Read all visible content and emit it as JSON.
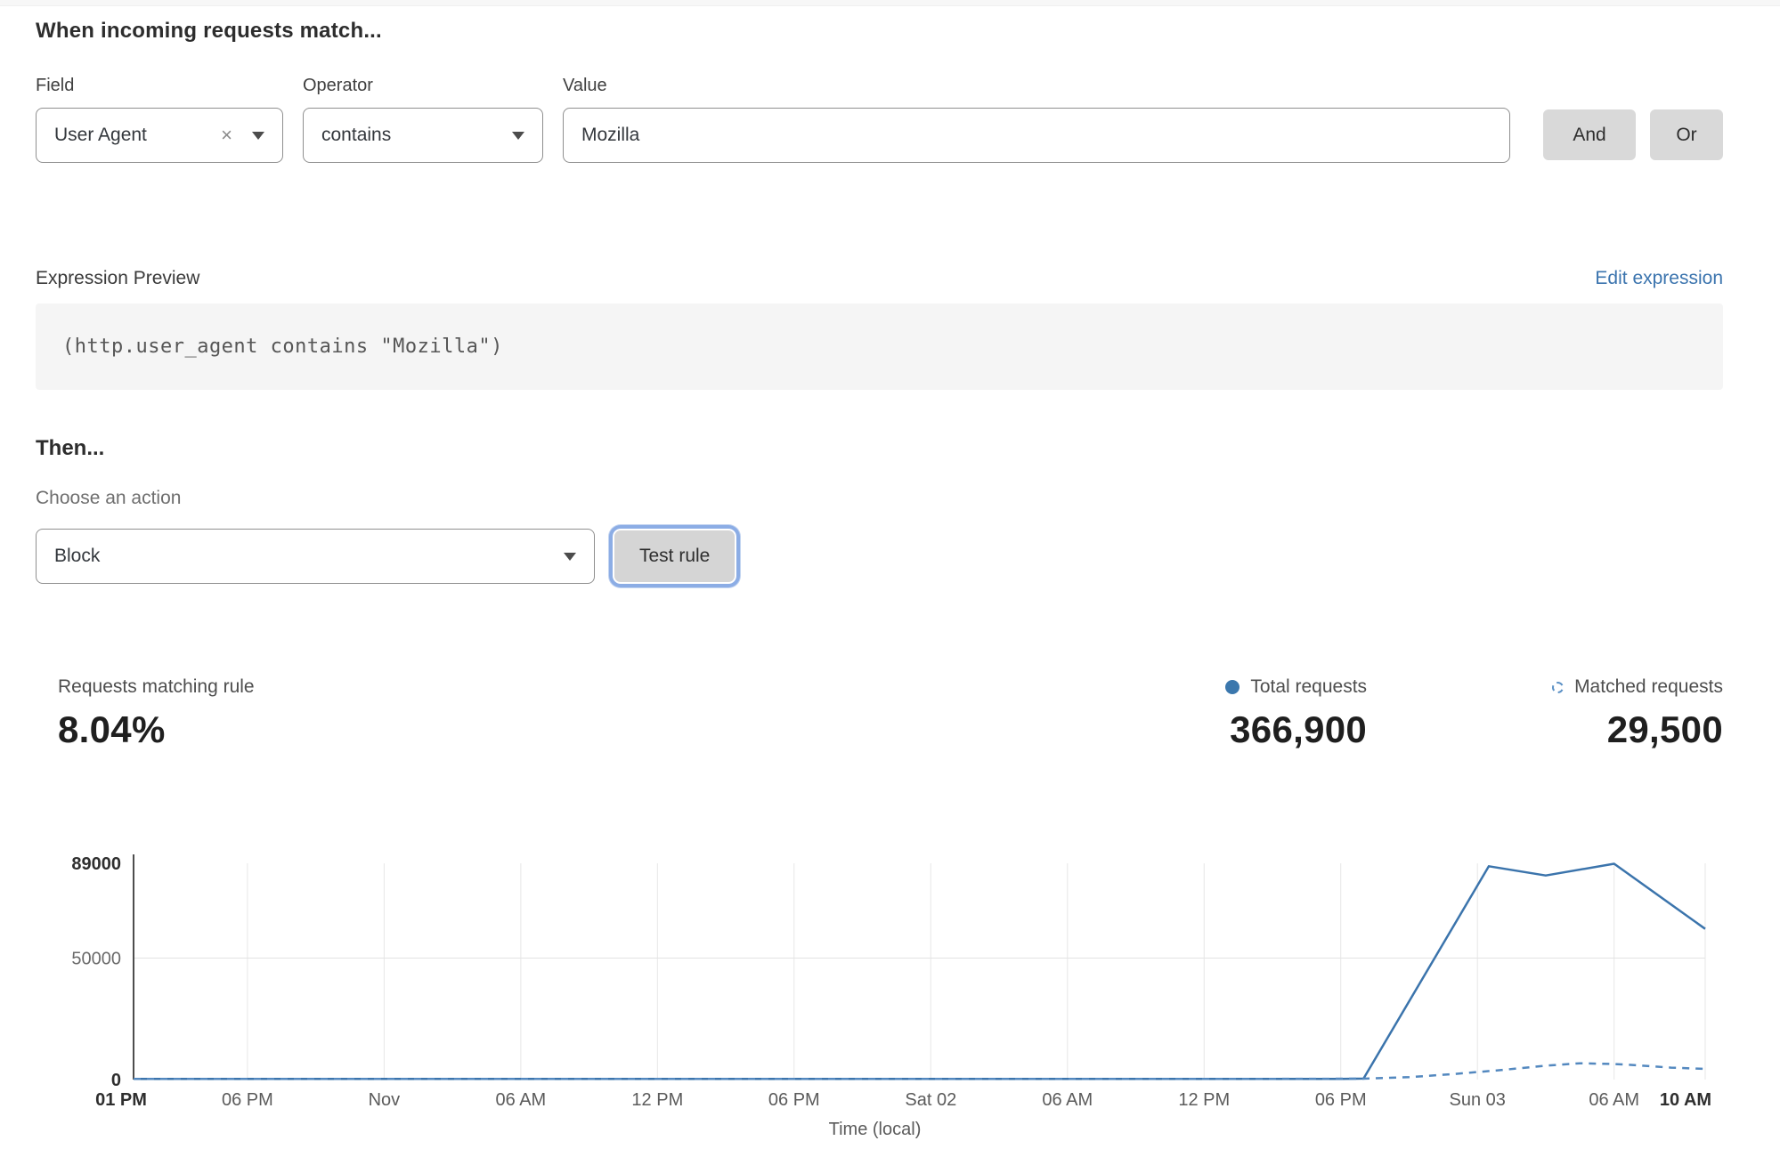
{
  "header": {
    "title": "When incoming requests match..."
  },
  "rule_builder": {
    "field": {
      "label": "Field",
      "value": "User Agent",
      "clear_glyph": "×"
    },
    "operator": {
      "label": "Operator",
      "value": "contains"
    },
    "value": {
      "label": "Value",
      "value": "Mozilla"
    },
    "and_label": "And",
    "or_label": "Or"
  },
  "expression": {
    "label": "Expression Preview",
    "edit_link": "Edit expression",
    "code": "(http.user_agent contains \"Mozilla\")"
  },
  "action": {
    "heading": "Then...",
    "label": "Choose an action",
    "value": "Block",
    "test_button": "Test rule"
  },
  "stats": {
    "matching": {
      "label": "Requests matching rule",
      "value": "8.04%"
    },
    "total": {
      "label": "Total requests",
      "value": "366,900"
    },
    "matched": {
      "label": "Matched requests",
      "value": "29,500"
    }
  },
  "colors": {
    "link_blue": "#3b74ae",
    "total_dot": "#3b77ad",
    "matched_ring": "#5d92c6",
    "axis_dark": "#4d4d4d",
    "gridline": "#e7e7e7"
  },
  "chart_data": {
    "type": "line",
    "title": "",
    "xlabel": "Time (local)",
    "ylabel": "",
    "ylim": [
      0,
      89000
    ],
    "x_range_hours": [
      0,
      69
    ],
    "grid": "vertical-per-tick, horizontal-at-50000",
    "legend_position": "top-right-above-chart",
    "y_ticks": [
      {
        "value": 0,
        "label": "0",
        "bold": true
      },
      {
        "value": 50000,
        "label": "50000",
        "bold": false
      },
      {
        "value": 89000,
        "label": "89000",
        "bold": true
      }
    ],
    "x_ticks": [
      {
        "hour": 0,
        "label": "01 PM",
        "bold": true
      },
      {
        "hour": 5,
        "label": "06 PM",
        "bold": false
      },
      {
        "hour": 11,
        "label": "Nov",
        "bold": false
      },
      {
        "hour": 17,
        "label": "06 AM",
        "bold": false
      },
      {
        "hour": 23,
        "label": "12 PM",
        "bold": false
      },
      {
        "hour": 29,
        "label": "06 PM",
        "bold": false
      },
      {
        "hour": 35,
        "label": "Sat 02",
        "bold": false
      },
      {
        "hour": 41,
        "label": "06 AM",
        "bold": false
      },
      {
        "hour": 47,
        "label": "12 PM",
        "bold": false
      },
      {
        "hour": 53,
        "label": "06 PM",
        "bold": false
      },
      {
        "hour": 59,
        "label": "Sun 03",
        "bold": false
      },
      {
        "hour": 65,
        "label": "06 AM",
        "bold": false
      },
      {
        "hour": 69,
        "label": "10 AM",
        "bold": true
      }
    ],
    "series": [
      {
        "name": "Total requests",
        "style": "solid",
        "color": "#3b74ac",
        "points": [
          [
            0,
            300
          ],
          [
            6,
            300
          ],
          [
            12,
            300
          ],
          [
            18,
            300
          ],
          [
            24,
            300
          ],
          [
            30,
            300
          ],
          [
            36,
            300
          ],
          [
            42,
            300
          ],
          [
            48,
            300
          ],
          [
            53,
            300
          ],
          [
            54,
            400
          ],
          [
            59.5,
            87800
          ],
          [
            62,
            84000
          ],
          [
            65,
            88800
          ],
          [
            69,
            62000
          ]
        ]
      },
      {
        "name": "Matched requests",
        "style": "dashed",
        "color": "#5388bf",
        "points": [
          [
            0,
            250
          ],
          [
            6,
            250
          ],
          [
            12,
            250
          ],
          [
            18,
            250
          ],
          [
            24,
            250
          ],
          [
            30,
            250
          ],
          [
            36,
            250
          ],
          [
            42,
            250
          ],
          [
            48,
            250
          ],
          [
            54,
            350
          ],
          [
            56,
            1000
          ],
          [
            58,
            2300
          ],
          [
            60,
            3900
          ],
          [
            62,
            5700
          ],
          [
            63.5,
            6700
          ],
          [
            65,
            6400
          ],
          [
            66,
            5900
          ],
          [
            67.5,
            4900
          ],
          [
            69,
            4400
          ]
        ]
      }
    ]
  }
}
